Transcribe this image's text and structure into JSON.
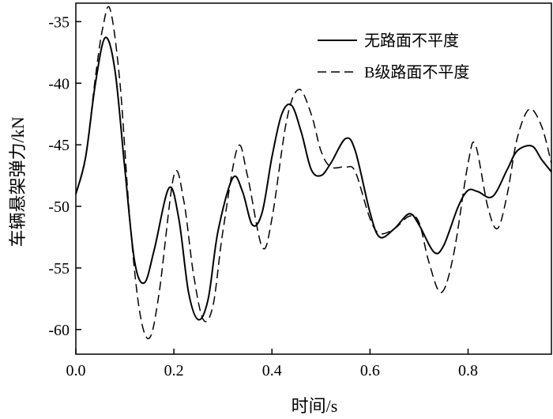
{
  "chart_data": {
    "type": "line",
    "xlabel": "时间/s",
    "ylabel": "车辆悬架弹力/kN",
    "xlim": [
      0,
      0.97
    ],
    "ylim": [
      -62,
      -33.5
    ],
    "xticks": [
      0,
      0.2,
      0.4,
      0.6,
      0.8
    ],
    "xtick_labels": [
      "0.0",
      "0.2",
      "0.4",
      "0.6",
      "0.8"
    ],
    "yticks": [
      -35,
      -40,
      -45,
      -50,
      -55,
      -60
    ],
    "ytick_labels": [
      "-35",
      "-40",
      "-45",
      "-50",
      "-55",
      "-60"
    ],
    "grid": false,
    "legend_position": "top-right",
    "series": [
      {
        "name": "无路面不平度",
        "style": "solid",
        "color": "#000000",
        "x": [
          0.0,
          0.02,
          0.04,
          0.06,
          0.08,
          0.1,
          0.12,
          0.14,
          0.16,
          0.19,
          0.21,
          0.23,
          0.25,
          0.27,
          0.29,
          0.32,
          0.34,
          0.36,
          0.38,
          0.4,
          0.42,
          0.44,
          0.46,
          0.48,
          0.5,
          0.52,
          0.55,
          0.57,
          0.6,
          0.62,
          0.65,
          0.68,
          0.7,
          0.73,
          0.75,
          0.78,
          0.8,
          0.82,
          0.85,
          0.88,
          0.9,
          0.93,
          0.95,
          0.97
        ],
        "y": [
          -49.0,
          -46.0,
          -40.0,
          -36.3,
          -39.0,
          -47.0,
          -54.5,
          -56.2,
          -53.5,
          -48.5,
          -51.0,
          -57.0,
          -59.2,
          -57.5,
          -52.0,
          -47.7,
          -48.8,
          -51.5,
          -50.5,
          -46.0,
          -42.5,
          -41.8,
          -44.0,
          -47.0,
          -47.5,
          -46.5,
          -44.5,
          -45.5,
          -50.5,
          -52.5,
          -51.8,
          -50.6,
          -51.5,
          -53.7,
          -53.2,
          -50.0,
          -48.7,
          -48.8,
          -49.2,
          -47.0,
          -45.5,
          -45.1,
          -46.2,
          -47.2
        ]
      },
      {
        "name": "B级路面不平度",
        "style": "dashed",
        "color": "#000000",
        "x": [
          0.0,
          0.02,
          0.04,
          0.055,
          0.07,
          0.09,
          0.11,
          0.13,
          0.15,
          0.17,
          0.2,
          0.22,
          0.24,
          0.26,
          0.28,
          0.3,
          0.33,
          0.35,
          0.38,
          0.4,
          0.43,
          0.455,
          0.48,
          0.5,
          0.52,
          0.55,
          0.57,
          0.6,
          0.62,
          0.65,
          0.68,
          0.7,
          0.72,
          0.745,
          0.77,
          0.8,
          0.815,
          0.84,
          0.86,
          0.88,
          0.9,
          0.925,
          0.95,
          0.97
        ],
        "y": [
          -49.0,
          -46.0,
          -39.5,
          -35.5,
          -34.0,
          -40.0,
          -51.0,
          -58.5,
          -60.7,
          -57.0,
          -47.5,
          -49.5,
          -55.5,
          -59.2,
          -58.0,
          -52.0,
          -45.2,
          -47.5,
          -53.3,
          -51.0,
          -43.0,
          -40.5,
          -42.5,
          -45.5,
          -46.8,
          -46.8,
          -47.2,
          -51.0,
          -52.2,
          -51.8,
          -50.8,
          -51.3,
          -54.5,
          -57.0,
          -54.0,
          -46.5,
          -45.0,
          -50.0,
          -51.8,
          -49.0,
          -44.5,
          -42.1,
          -43.5,
          -46.5
        ]
      }
    ]
  }
}
